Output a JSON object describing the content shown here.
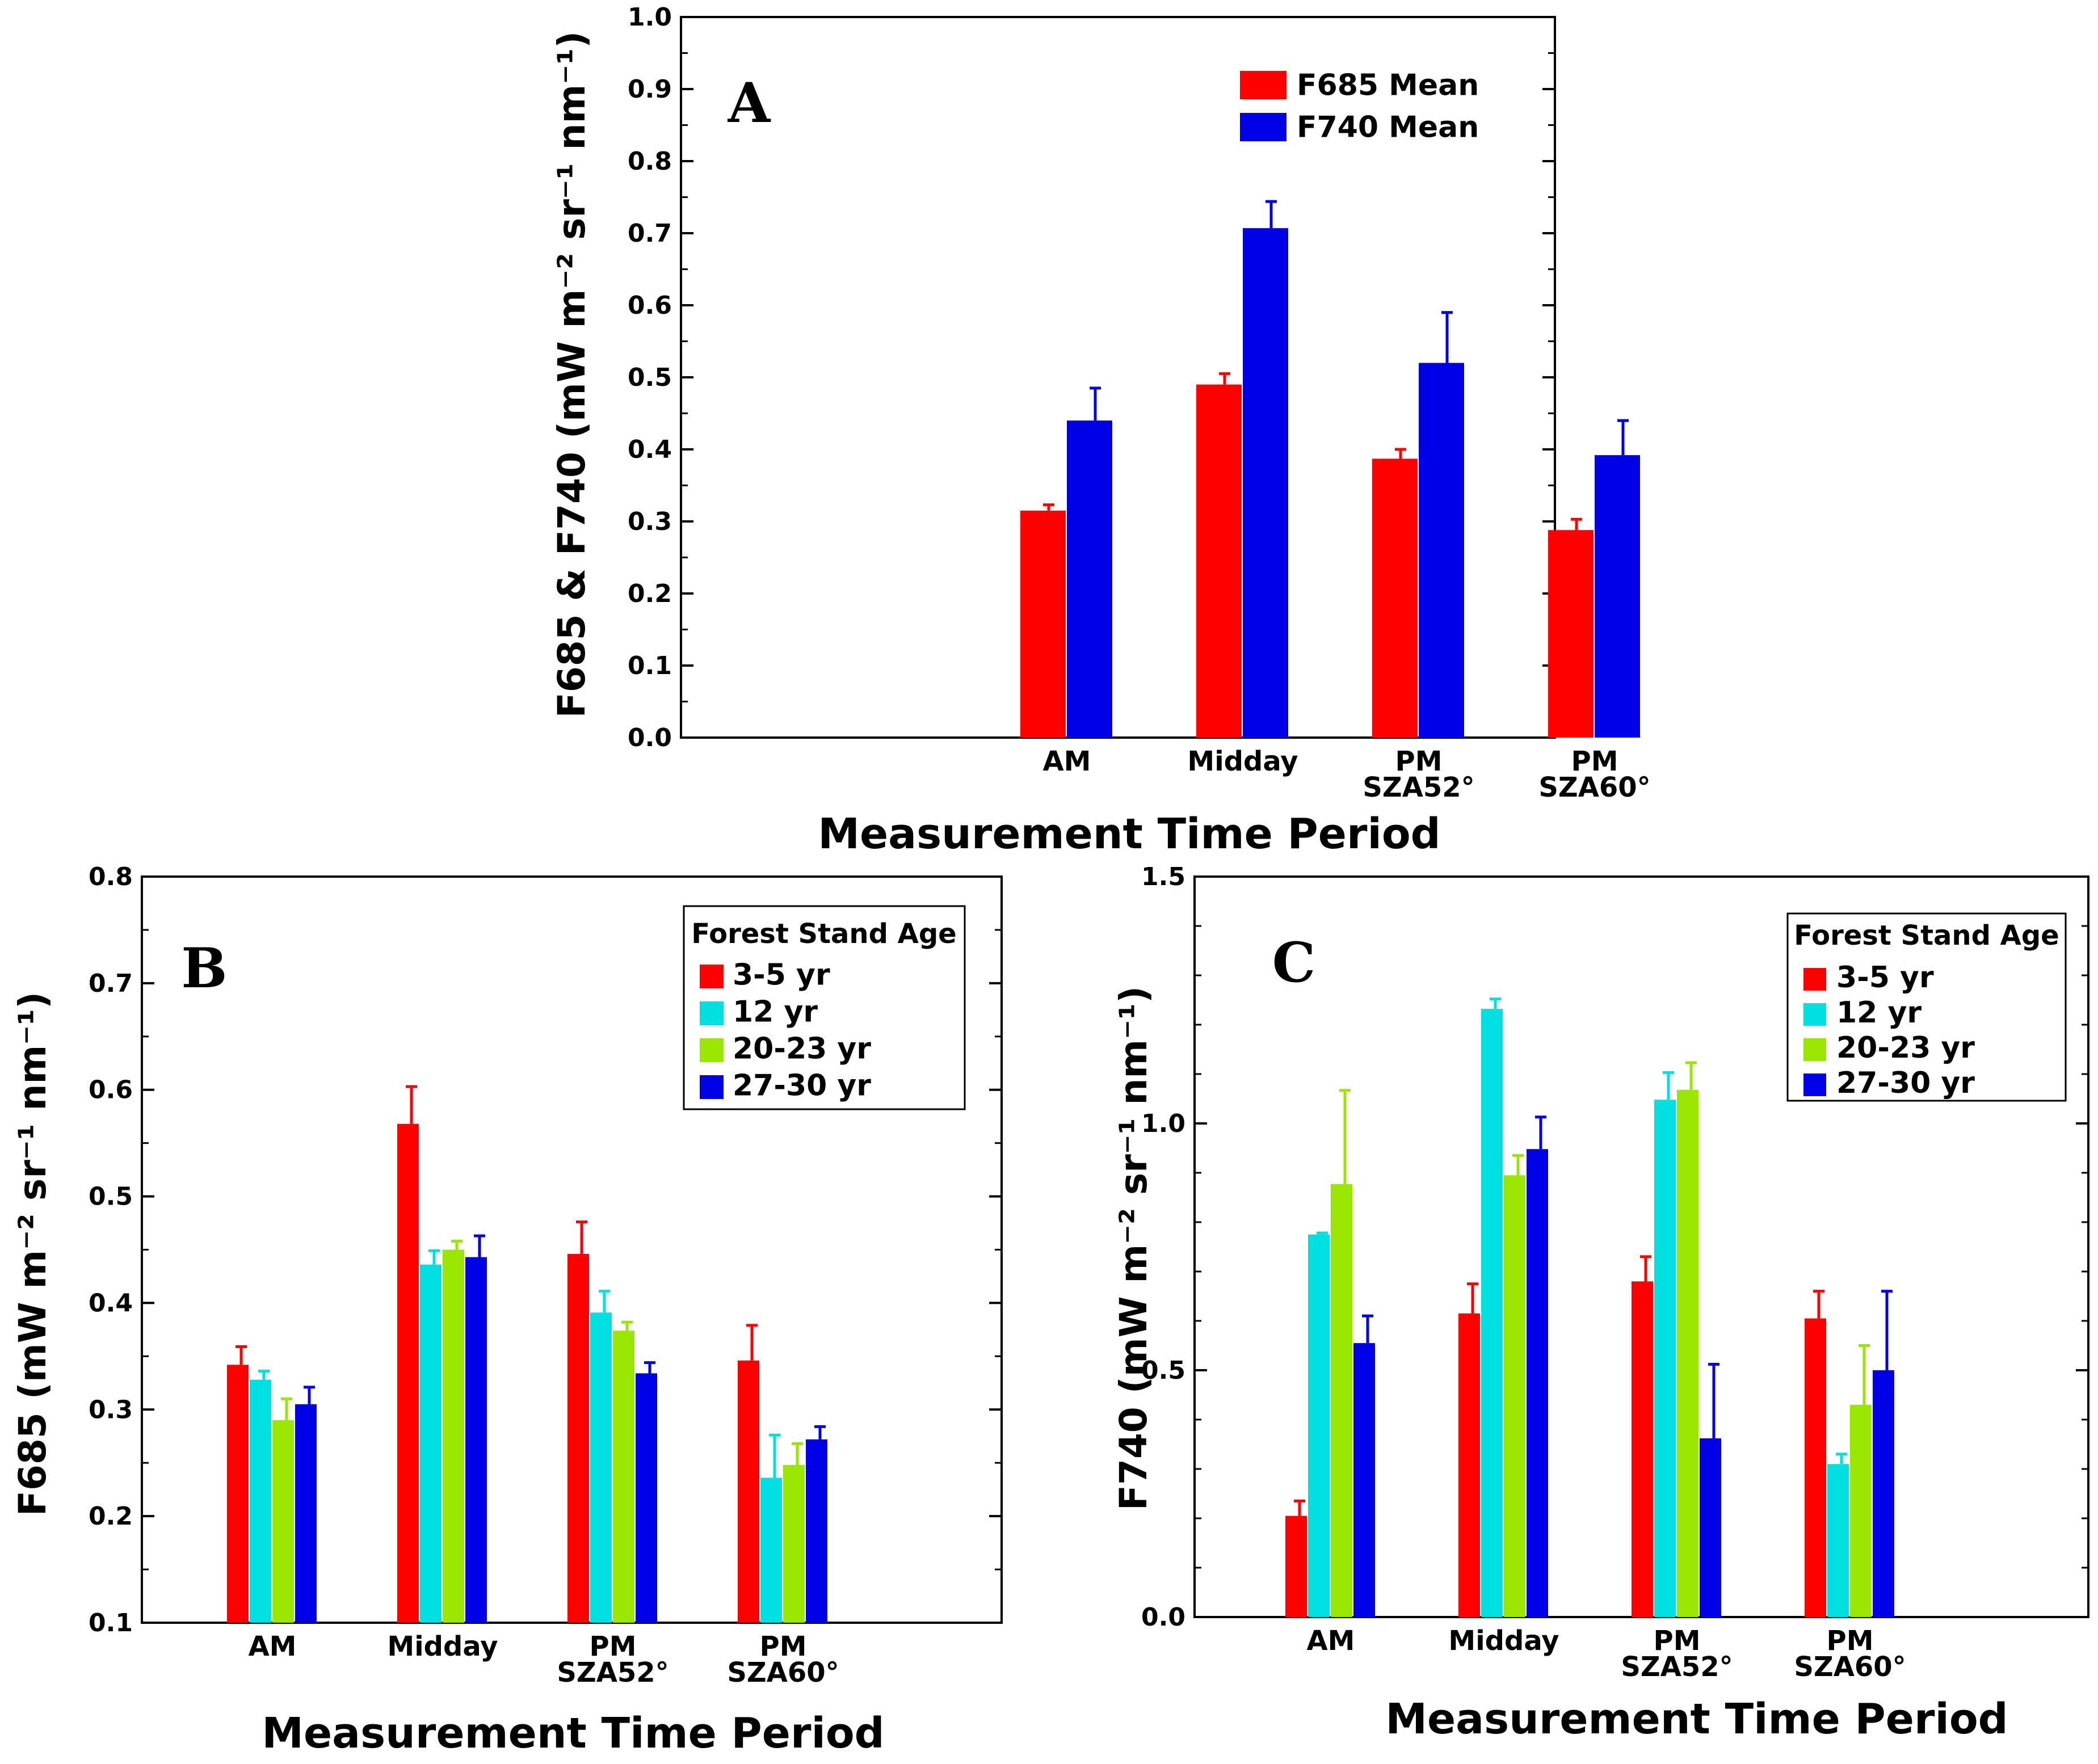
{
  "chart_data": [
    {
      "type": "bar",
      "panel_label": "A",
      "categories": [
        [
          "AM"
        ],
        [
          "Midday"
        ],
        [
          "PM",
          "SZA52°"
        ],
        [
          "PM",
          "SZA60°"
        ]
      ],
      "xlabel": "Measurement Time Period",
      "ylabel": "F685 & F740 (mW m⁻² sr⁻¹ nm⁻¹)",
      "ylim": [
        0.0,
        1.0
      ],
      "yticks": [
        "0.0",
        "0.1",
        "0.2",
        "0.3",
        "0.4",
        "0.5",
        "0.6",
        "0.7",
        "0.8",
        "0.9",
        "1.0"
      ],
      "legend_title": "",
      "legend_position": "top-right",
      "series": [
        {
          "name": "F685 Mean",
          "color": "#ff0000",
          "values": [
            0.315,
            0.49,
            0.387,
            0.288
          ],
          "errors": [
            0.008,
            0.015,
            0.013,
            0.015
          ]
        },
        {
          "name": "F740 Mean",
          "color": "#0000e6",
          "values": [
            0.44,
            0.707,
            0.52,
            0.392
          ],
          "errors": [
            0.045,
            0.037,
            0.07,
            0.048
          ]
        }
      ]
    },
    {
      "type": "bar",
      "panel_label": "B",
      "categories": [
        [
          "AM"
        ],
        [
          "Midday"
        ],
        [
          "PM",
          "SZA52°"
        ],
        [
          "PM",
          "SZA60°"
        ]
      ],
      "xlabel": "Measurement Time Period",
      "ylabel": "F685 (mW m⁻² sr⁻¹ nm⁻¹)",
      "ylim": [
        0.1,
        0.8
      ],
      "yticks": [
        "0.1",
        "0.2",
        "0.3",
        "0.4",
        "0.5",
        "0.6",
        "0.7",
        "0.8"
      ],
      "legend_title": "Forest Stand Age",
      "legend_position": "top-right",
      "series": [
        {
          "name": "3-5 yr",
          "color": "#ff0000",
          "values": [
            0.342,
            0.568,
            0.446,
            0.346
          ],
          "errors": [
            0.017,
            0.035,
            0.03,
            0.033
          ]
        },
        {
          "name": "12 yr",
          "color": "#00e0e0",
          "values": [
            0.328,
            0.436,
            0.391,
            0.236
          ],
          "errors": [
            0.008,
            0.013,
            0.02,
            0.04
          ]
        },
        {
          "name": "20-23 yr",
          "color": "#99e600",
          "values": [
            0.29,
            0.45,
            0.374,
            0.248
          ],
          "errors": [
            0.02,
            0.008,
            0.008,
            0.02
          ]
        },
        {
          "name": "27-30 yr",
          "color": "#0000e6",
          "values": [
            0.305,
            0.443,
            0.334,
            0.272
          ],
          "errors": [
            0.016,
            0.02,
            0.01,
            0.012
          ]
        }
      ]
    },
    {
      "type": "bar",
      "panel_label": "C",
      "categories": [
        [
          "AM"
        ],
        [
          "Midday"
        ],
        [
          "PM",
          "SZA52°"
        ],
        [
          "PM",
          "SZA60°"
        ]
      ],
      "xlabel": "Measurement Time Period",
      "ylabel": "F740 (mW m⁻² sr⁻¹ nm⁻¹)",
      "ylim": [
        0.0,
        1.5
      ],
      "yticks": [
        "0.0",
        "0.5",
        "1.0",
        "1.5"
      ],
      "legend_title": "Forest Stand Age",
      "legend_position": "top-right",
      "series": [
        {
          "name": "3-5 yr",
          "color": "#ff0000",
          "values": [
            0.205,
            0.615,
            0.68,
            0.605
          ],
          "errors": [
            0.03,
            0.06,
            0.05,
            0.055
          ]
        },
        {
          "name": "12 yr",
          "color": "#00e0e0",
          "values": [
            0.775,
            1.232,
            1.048,
            0.31
          ],
          "errors": [
            0.003,
            0.02,
            0.055,
            0.02
          ]
        },
        {
          "name": "20-23 yr",
          "color": "#99e600",
          "values": [
            0.877,
            0.895,
            1.068,
            0.43
          ],
          "errors": [
            0.19,
            0.04,
            0.055,
            0.12
          ]
        },
        {
          "name": "27-30 yr",
          "color": "#0000e6",
          "values": [
            0.555,
            0.948,
            0.362,
            0.5
          ],
          "errors": [
            0.055,
            0.065,
            0.15,
            0.16
          ]
        }
      ]
    }
  ]
}
